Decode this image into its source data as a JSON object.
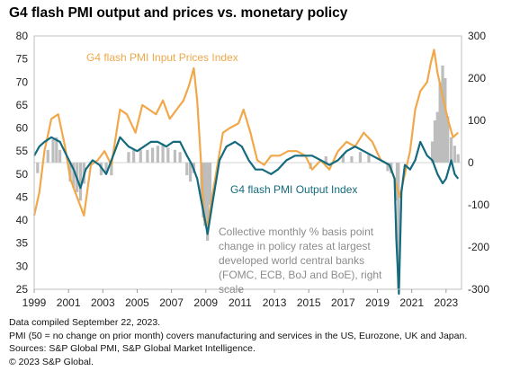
{
  "title": "G4 flash PMI output and prices vs. monetary policy",
  "footer": {
    "line1": "Data compiled September 22, 2023.",
    "line2": "PMI (50 = no change on prior month) covers manufacturing and services in the US, Eurozone, UK and Japan.",
    "line3": "Sources: S&P Global PMI, S&P Global Market Intelligence.",
    "line4": "© 2023 S&P Global."
  },
  "chart_data": {
    "type": "line",
    "x_range": [
      1999.0,
      2023.9
    ],
    "x_ticks": [
      "1999",
      "2001",
      "2003",
      "2005",
      "2007",
      "2009",
      "2011",
      "2013",
      "2015",
      "2017",
      "2019",
      "2021",
      "2023"
    ],
    "y_left": {
      "range": [
        25,
        80
      ],
      "ticks": [
        "25",
        "30",
        "35",
        "40",
        "45",
        "50",
        "55",
        "60",
        "65",
        "70",
        "75",
        "80"
      ]
    },
    "y_right": {
      "range": [
        -300,
        300
      ],
      "ticks": [
        "-300",
        "-200",
        "-100",
        "0",
        "100",
        "200",
        "300"
      ]
    },
    "colors": {
      "input_prices": "#F0A84A",
      "output": "#136B7D",
      "policy": "#BDBDBD"
    },
    "annotations": {
      "input_prices": "G4 flash PMI Input Prices Index",
      "output": "G4 flash PMI Output  Index",
      "policy_lines": [
        "Collective monthly  % basis point",
        "change in policy rates at largest",
        "developed  world central banks",
        "(FOMC, ECB, BoJ and BoE), right",
        "scale"
      ]
    },
    "series": [
      {
        "name": "G4 flash PMI Input Prices Index",
        "axis": "left",
        "x": [
          1999.0,
          1999.3,
          1999.6,
          2000.0,
          2000.4,
          2000.8,
          2001.1,
          2001.5,
          2001.9,
          2002.3,
          2002.7,
          2003.1,
          2003.5,
          2004.0,
          2004.4,
          2004.9,
          2005.3,
          2005.7,
          2006.1,
          2006.5,
          2006.9,
          2007.3,
          2007.7,
          2008.0,
          2008.3,
          2008.5,
          2008.7,
          2008.9,
          2009.1,
          2009.5,
          2010.0,
          2010.4,
          2010.9,
          2011.2,
          2011.6,
          2012.0,
          2012.4,
          2012.8,
          2013.3,
          2013.8,
          2014.3,
          2014.8,
          2015.2,
          2015.7,
          2016.2,
          2016.7,
          2017.2,
          2017.7,
          2018.2,
          2018.7,
          2019.2,
          2019.7,
          2020.0,
          2020.3,
          2020.6,
          2020.9,
          2021.2,
          2021.5,
          2021.9,
          2022.1,
          2022.3,
          2022.5,
          2022.8,
          2023.1,
          2023.4,
          2023.7
        ],
        "values": [
          41,
          46,
          55,
          62,
          63,
          56,
          49,
          45,
          41,
          52,
          53,
          55,
          52,
          64,
          63,
          59,
          65,
          64,
          63,
          66,
          62,
          64,
          66,
          69,
          73,
          66,
          54,
          40,
          39,
          48,
          59,
          60,
          61,
          64,
          59,
          53,
          52,
          54,
          54,
          55,
          55,
          54,
          51,
          53,
          51,
          55,
          57,
          56,
          59,
          57,
          53,
          52,
          49,
          45,
          50,
          55,
          64,
          68,
          70,
          74,
          77,
          72,
          67,
          62,
          58,
          59
        ]
      },
      {
        "name": "G4 flash PMI Output  Index",
        "axis": "left",
        "x": [
          1999.0,
          1999.3,
          1999.6,
          2000.0,
          2000.5,
          2000.9,
          2001.3,
          2001.7,
          2002.0,
          2002.4,
          2002.8,
          2003.2,
          2003.6,
          2004.0,
          2004.5,
          2005.0,
          2005.4,
          2005.8,
          2006.2,
          2006.7,
          2007.1,
          2007.5,
          2007.9,
          2008.2,
          2008.5,
          2008.7,
          2008.9,
          2009.1,
          2009.4,
          2009.8,
          2010.2,
          2010.7,
          2011.1,
          2011.5,
          2011.9,
          2012.3,
          2012.8,
          2013.2,
          2013.7,
          2014.2,
          2014.7,
          2015.2,
          2015.7,
          2016.2,
          2016.7,
          2017.2,
          2017.7,
          2018.2,
          2018.7,
          2019.2,
          2019.7,
          2020.0,
          2020.1,
          2020.25,
          2020.4,
          2020.6,
          2020.9,
          2021.2,
          2021.5,
          2021.9,
          2022.2,
          2022.5,
          2022.8,
          2023.0,
          2023.3,
          2023.5,
          2023.7
        ],
        "values": [
          54,
          56,
          57,
          58,
          57,
          54,
          51,
          47,
          51,
          53,
          52,
          50,
          54,
          58,
          56,
          55,
          56,
          57,
          57,
          56,
          57,
          57,
          54,
          52,
          49,
          45,
          41,
          37,
          44,
          53,
          56,
          57,
          56,
          53,
          51,
          51,
          50,
          51,
          53,
          54,
          54,
          54,
          53,
          52,
          53,
          55,
          56,
          55,
          54,
          53,
          52,
          49,
          36,
          24,
          46,
          52,
          51,
          53,
          57,
          54,
          53,
          50,
          48,
          49,
          53,
          50,
          49
        ]
      },
      {
        "name": "Collective monthly % basis point change in policy rates at largest developed world central banks",
        "type": "bar",
        "axis": "right",
        "x": [
          1999.2,
          1999.8,
          2000.1,
          2000.3,
          2000.5,
          2001.1,
          2001.3,
          2001.5,
          2001.7,
          2001.9,
          2002.9,
          2003.2,
          2003.5,
          2004.5,
          2004.8,
          2005.2,
          2005.6,
          2005.9,
          2006.2,
          2006.5,
          2006.8,
          2007.2,
          2007.5,
          2007.9,
          2008.1,
          2008.3,
          2008.75,
          2008.85,
          2008.95,
          2009.1,
          2009.25,
          2015.1,
          2016.0,
          2017.0,
          2017.5,
          2018.0,
          2018.5,
          2019.6,
          2019.8,
          2020.15,
          2020.22,
          2022.2,
          2022.35,
          2022.5,
          2022.65,
          2022.8,
          2022.95,
          2023.1,
          2023.3,
          2023.5,
          2023.7
        ],
        "values": [
          -25,
          30,
          55,
          60,
          30,
          -45,
          -60,
          -70,
          -90,
          -50,
          -30,
          -25,
          -30,
          25,
          30,
          30,
          30,
          35,
          40,
          45,
          35,
          30,
          25,
          -30,
          -45,
          -25,
          -80,
          -130,
          -150,
          -185,
          -100,
          -15,
          15,
          20,
          15,
          25,
          20,
          -20,
          -25,
          -90,
          -300,
          50,
          100,
          120,
          190,
          230,
          200,
          110,
          60,
          40,
          20
        ]
      }
    ]
  }
}
